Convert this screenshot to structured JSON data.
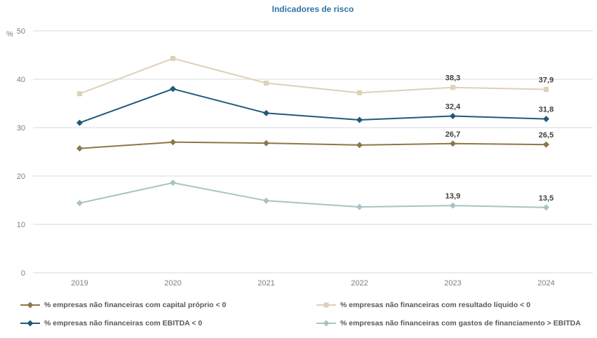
{
  "title": "Indicadores de risco",
  "colors": {
    "title": "#2e74a8",
    "grid": "#d9d9d9",
    "axis_text": "#7f7f7f",
    "data_label": "#404040",
    "legend_text": "#595959",
    "background": "#ffffff"
  },
  "axis": {
    "unit_label": "%",
    "y_ticks": [
      "0",
      "10",
      "20",
      "30",
      "40",
      "50"
    ],
    "x_ticks": [
      "2019",
      "2020",
      "2021",
      "2022",
      "2023",
      "2024"
    ]
  },
  "chart_data": {
    "type": "line",
    "title": "Indicadores de risco",
    "categories": [
      "2019",
      "2020",
      "2021",
      "2022",
      "2023",
      "2024"
    ],
    "xlabel": "",
    "ylabel": "%",
    "ylim": [
      0,
      50
    ],
    "ytick_step": 10,
    "grid": true,
    "legend_position": "bottom",
    "series": [
      {
        "slug": "capital-proprio",
        "name": "% empresas não financeiras com capital próprio < 0",
        "color": "#8e7747",
        "marker": "diamond",
        "values": [
          25.7,
          27.0,
          26.8,
          26.4,
          26.7,
          26.5
        ],
        "point_labels": [
          "",
          "",
          "",
          "",
          "26,7",
          "26,5"
        ]
      },
      {
        "slug": "resultado-liquido",
        "name": "% empresas não financeiras com resultado líquido < 0",
        "color": "#ddd1b8",
        "marker": "square",
        "values": [
          37.0,
          44.3,
          39.2,
          37.2,
          38.3,
          37.9
        ],
        "point_labels": [
          "",
          "",
          "",
          "",
          "38,3",
          "37,9"
        ]
      },
      {
        "slug": "ebitda",
        "name": "% empresas não financeiras com EBITDA < 0",
        "color": "#20597a",
        "marker": "diamond",
        "values": [
          31.0,
          38.0,
          33.0,
          31.6,
          32.4,
          31.8
        ],
        "point_labels": [
          "",
          "",
          "",
          "",
          "32,4",
          "31,8"
        ]
      },
      {
        "slug": "gastos-financiamento",
        "name": "% empresas não financeiras com gastos de financiamento > EBITDA",
        "color": "#a6c4c3",
        "marker": "diamond",
        "values": [
          14.4,
          18.6,
          14.9,
          13.6,
          13.9,
          13.5
        ],
        "point_labels": [
          "",
          "",
          "",
          "",
          "13,9",
          "13,5"
        ]
      }
    ]
  }
}
